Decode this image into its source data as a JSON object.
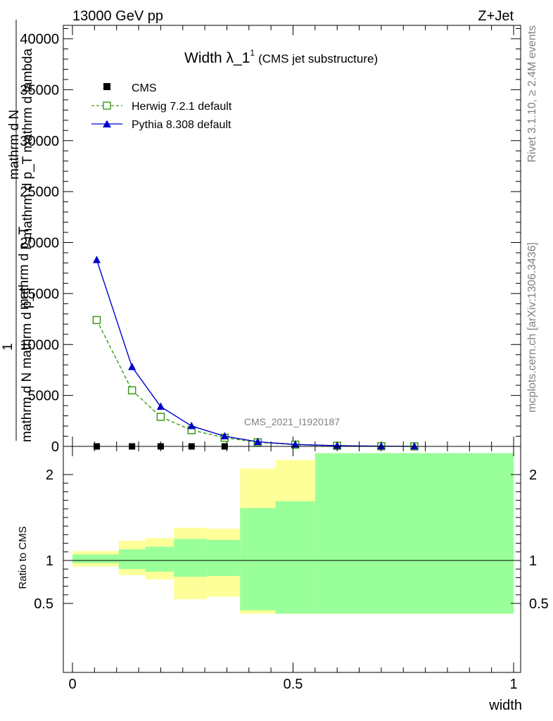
{
  "header": {
    "left": "13000 GeV pp",
    "right": "Z+Jet"
  },
  "side_labels": {
    "rivet": "Rivet 3.1.10, ≥ 2.4M events",
    "mcplots": "mcplots.cern.ch [arXiv:1306.3436]"
  },
  "watermark": "CMS_2021_I1920187",
  "chart_data": [
    {
      "type": "line",
      "title": "Width λ_1",
      "title_superscript": "1",
      "subtitle": "(CMS jet substructure)",
      "ylabel_top": "mathrm d N",
      "ylabel_lines": [
        "mathrm d p_T mathrm d lambda",
        "mathrm d p_T"
      ],
      "ylabel_one": "1",
      "ylabel_bottom": "mathrm d N mathrm d p_T",
      "xlim": [
        0,
        1
      ],
      "ylim": [
        0,
        42000
      ],
      "y_ticks": [
        0,
        5000,
        10000,
        15000,
        20000,
        25000,
        30000,
        35000,
        40000
      ],
      "y_tick_labels": [
        "0",
        "5000",
        "10000",
        "15000",
        "20000",
        "25000",
        "30000",
        "35000",
        "40000"
      ],
      "legend_position": "top-left",
      "series": [
        {
          "name": "CMS",
          "color": "#000000",
          "marker": "square-filled",
          "x": [
            0.055,
            0.135,
            0.2,
            0.27,
            0.345,
            0.775
          ],
          "y": [
            0,
            0,
            0,
            0,
            0,
            0
          ]
        },
        {
          "name": "Herwig 7.2.1 default",
          "color": "#3a9a14",
          "marker": "square-open",
          "dashed": true,
          "x": [
            0.055,
            0.135,
            0.2,
            0.27,
            0.345,
            0.42,
            0.505,
            0.6,
            0.7,
            0.775
          ],
          "y": [
            12400,
            5500,
            2900,
            1600,
            850,
            400,
            170,
            60,
            20,
            5
          ]
        },
        {
          "name": "Pythia 8.308 default",
          "color": "#0000cc",
          "marker": "triangle-filled",
          "x": [
            0.055,
            0.135,
            0.2,
            0.27,
            0.345,
            0.42,
            0.505,
            0.6,
            0.7,
            0.775
          ],
          "y": [
            18300,
            7800,
            3900,
            2000,
            1000,
            450,
            190,
            70,
            25,
            6
          ]
        }
      ]
    },
    {
      "type": "area",
      "ylabel": "Ratio to CMS",
      "xlabel": "width",
      "xlim": [
        0,
        1
      ],
      "ylim": [
        0.38,
        2.25
      ],
      "x_ticks": [
        0,
        0.5,
        1
      ],
      "x_tick_labels": [
        "0",
        "0.5",
        "1"
      ],
      "y_ticks": [
        0.5,
        1,
        2
      ],
      "y_tick_labels": [
        "0.5",
        "1",
        "2"
      ],
      "reference_line": 1,
      "band_colors": {
        "outer": "#ffff99",
        "inner": "#99ff99"
      },
      "bins": [
        {
          "xlo": 0.0,
          "xhi": 0.105,
          "outer": [
            0.93,
            1.11
          ],
          "inner": [
            0.97,
            1.07
          ]
        },
        {
          "xlo": 0.105,
          "xhi": 0.165,
          "outer": [
            0.83,
            1.23
          ],
          "inner": [
            0.9,
            1.13
          ]
        },
        {
          "xlo": 0.165,
          "xhi": 0.23,
          "outer": [
            0.78,
            1.26
          ],
          "inner": [
            0.87,
            1.16
          ]
        },
        {
          "xlo": 0.23,
          "xhi": 0.305,
          "outer": [
            0.55,
            1.38
          ],
          "inner": [
            0.81,
            1.25
          ]
        },
        {
          "xlo": 0.305,
          "xhi": 0.38,
          "outer": [
            0.58,
            1.37
          ],
          "inner": [
            0.82,
            1.24
          ]
        },
        {
          "xlo": 0.38,
          "xhi": 0.46,
          "outer": [
            0.38,
            2.07
          ],
          "inner": [
            0.42,
            1.61
          ]
        },
        {
          "xlo": 0.46,
          "xhi": 0.55,
          "outer": [
            0.38,
            2.17
          ],
          "inner": [
            0.38,
            1.69
          ]
        },
        {
          "xlo": 0.55,
          "xhi": 1.0,
          "outer": [
            0.38,
            2.25
          ],
          "inner": [
            0.38,
            2.25
          ]
        }
      ]
    }
  ]
}
